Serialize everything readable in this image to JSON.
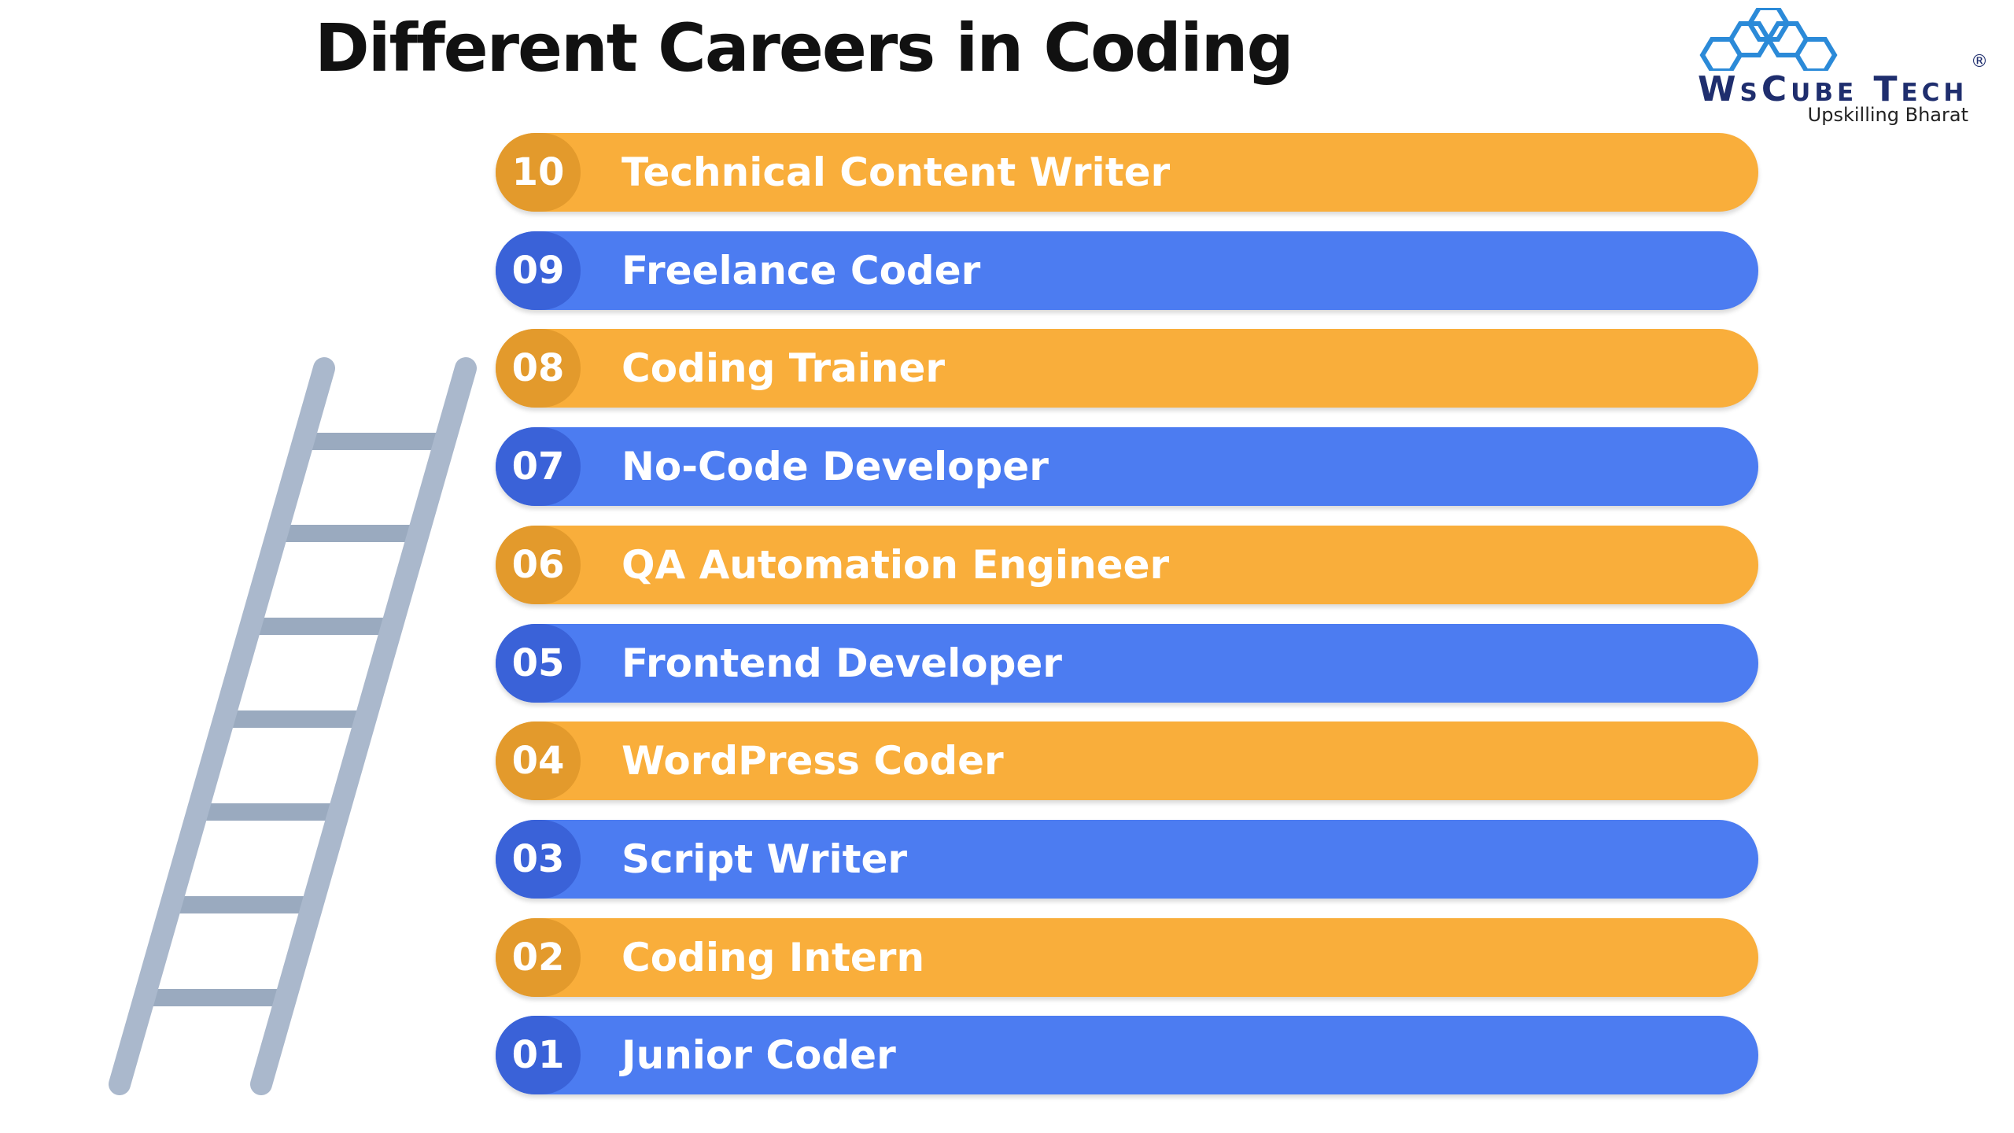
{
  "header": {
    "title": "Different Careers in Coding"
  },
  "logo": {
    "name": "WsCube Tech",
    "registered": "®",
    "tagline": "Upskilling Bharat"
  },
  "careers": [
    {
      "number": "10",
      "title": "Technical Content Writer"
    },
    {
      "number": "09",
      "title": "Freelance Coder"
    },
    {
      "number": "08",
      "title": "Coding Trainer"
    },
    {
      "number": "07",
      "title": "No-Code Developer"
    },
    {
      "number": "06",
      "title": "QA Automation Engineer"
    },
    {
      "number": "05",
      "title": "Frontend Developer"
    },
    {
      "number": "04",
      "title": "WordPress Coder"
    },
    {
      "number": "03",
      "title": "Script Writer"
    },
    {
      "number": "02",
      "title": "Coding Intern"
    },
    {
      "number": "01",
      "title": "Junior Coder"
    }
  ]
}
